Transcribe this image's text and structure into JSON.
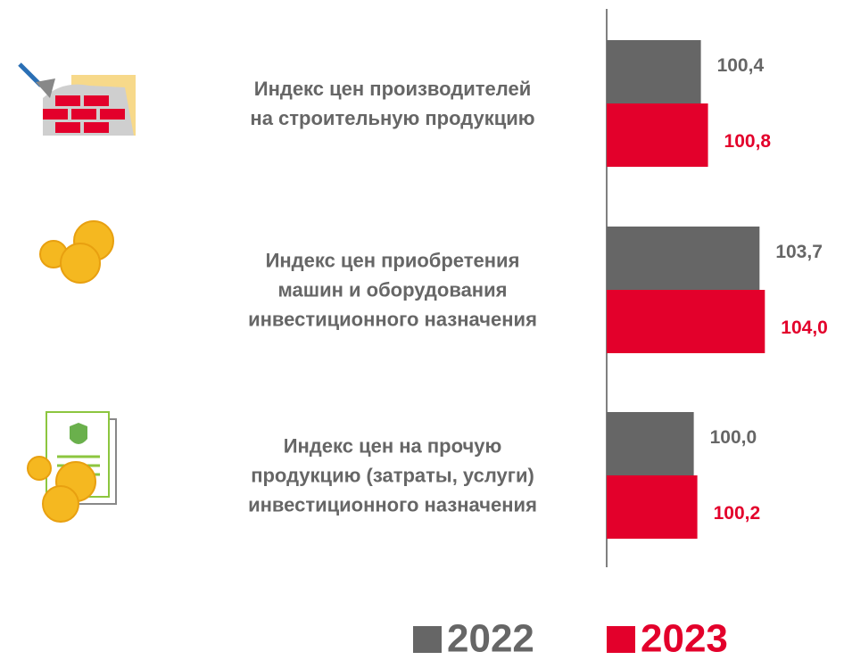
{
  "chart_data": {
    "type": "barh",
    "categories": [
      "Индекс цен производителей\nна строительную продукцию",
      "Индекс цен приобретения\nмашин и оборудования\nинвестиционного назначения",
      "Индекс цен на прочую\nпродукцию (затраты, услуги)\nинвестиционного назначения"
    ],
    "series": [
      {
        "name": "2022",
        "color": "#666666",
        "values": [
          100.4,
          103.7,
          100.0
        ],
        "value_labels": [
          "100,4",
          "103,7",
          "100,0"
        ]
      },
      {
        "name": "2023",
        "color": "#e3002b",
        "values": [
          100.8,
          104.0,
          100.2
        ],
        "value_labels": [
          "100,8",
          "104,0",
          "100,2"
        ]
      }
    ],
    "xlim": [
      95.1,
      108
    ],
    "legend": "bottom"
  }
}
